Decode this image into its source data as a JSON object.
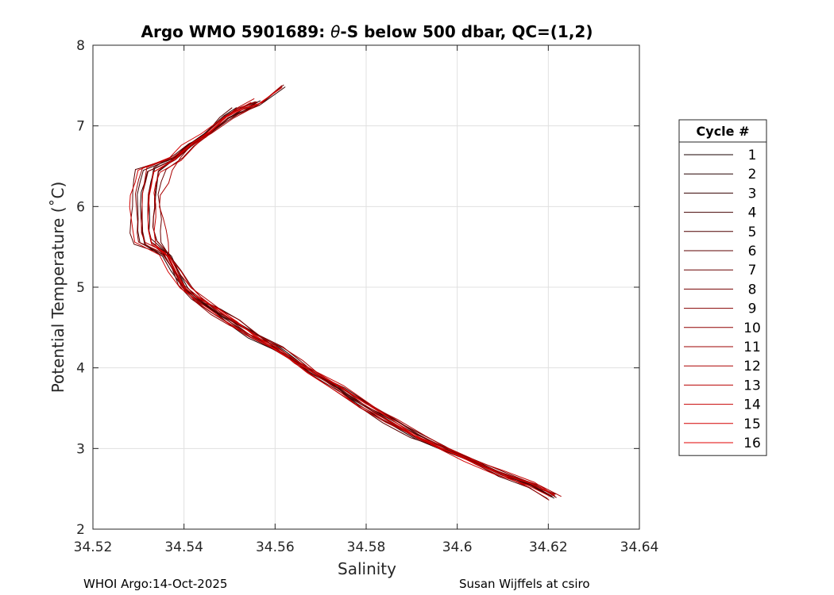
{
  "chart_data": {
    "type": "line",
    "title_prefix": "Argo WMO 5901689: ",
    "title_theta": "θ",
    "title_suffix": "-S below 500 dbar,  QC=(1,2)",
    "xlabel": "Salinity",
    "ylabel": "Potential Temperature (˚C)",
    "xlim": [
      34.52,
      34.64
    ],
    "ylim": [
      2,
      8
    ],
    "xticks": [
      34.52,
      34.54,
      34.56,
      34.58,
      34.6,
      34.62,
      34.64
    ],
    "xtick_labels": [
      "34.52",
      "34.54",
      "34.56",
      "34.58",
      "34.6",
      "34.62",
      "34.64"
    ],
    "yticks": [
      2,
      3,
      4,
      5,
      6,
      7,
      8
    ],
    "ytick_labels": [
      "2",
      "3",
      "4",
      "5",
      "6",
      "7",
      "8"
    ],
    "grid": true,
    "legend_title": "Cycle #",
    "legend_position": "outside-right",
    "color_start": "#1a0000",
    "color_end": "#e00000",
    "base_profile": [
      [
        34.561,
        7.5
      ],
      [
        34.556,
        7.3
      ],
      [
        34.552,
        7.2
      ],
      [
        34.549,
        7.1
      ],
      [
        34.545,
        6.9
      ],
      [
        34.541,
        6.75
      ],
      [
        34.538,
        6.6
      ],
      [
        34.536,
        6.45
      ],
      [
        34.535,
        6.3
      ],
      [
        34.534,
        6.15
      ],
      [
        34.534,
        6.0
      ],
      [
        34.534,
        5.85
      ],
      [
        34.534,
        5.7
      ],
      [
        34.535,
        5.55
      ],
      [
        34.536,
        5.4
      ],
      [
        34.538,
        5.2
      ],
      [
        34.54,
        5.0
      ],
      [
        34.543,
        4.85
      ],
      [
        34.547,
        4.7
      ],
      [
        34.551,
        4.55
      ],
      [
        34.555,
        4.4
      ],
      [
        34.56,
        4.25
      ],
      [
        34.564,
        4.1
      ],
      [
        34.568,
        3.95
      ],
      [
        34.574,
        3.75
      ],
      [
        34.579,
        3.55
      ],
      [
        34.585,
        3.35
      ],
      [
        34.591,
        3.15
      ],
      [
        34.597,
        3.0
      ],
      [
        34.603,
        2.85
      ],
      [
        34.609,
        2.7
      ],
      [
        34.616,
        2.55
      ],
      [
        34.621,
        2.4
      ]
    ],
    "series": [
      {
        "name": "1",
        "ds": 0.0005,
        "dt": 0.02,
        "top": 7.45,
        "bottom": 2.38,
        "lo": 34.532
      },
      {
        "name": "2",
        "ds": -0.0006,
        "dt": -0.03,
        "top": 7.3,
        "bottom": 2.35,
        "lo": 34.531
      },
      {
        "name": "3",
        "ds": 0.0008,
        "dt": 0.04,
        "top": 7.5,
        "bottom": 2.42,
        "lo": 34.533
      },
      {
        "name": "4",
        "ds": -0.0003,
        "dt": 0.0,
        "top": 7.42,
        "bottom": 2.36,
        "lo": 34.53
      },
      {
        "name": "5",
        "ds": 0.0002,
        "dt": -0.05,
        "top": 7.35,
        "bottom": 2.4,
        "lo": 34.532
      },
      {
        "name": "6",
        "ds": -0.0009,
        "dt": 0.03,
        "top": 7.28,
        "bottom": 2.33,
        "lo": 34.529
      },
      {
        "name": "7",
        "ds": 0.0011,
        "dt": 0.01,
        "top": 7.55,
        "bottom": 2.37,
        "lo": 34.534
      },
      {
        "name": "8",
        "ds": -0.0002,
        "dt": -0.02,
        "top": 7.38,
        "bottom": 2.39,
        "lo": 34.531
      },
      {
        "name": "9",
        "ds": 0.0006,
        "dt": 0.05,
        "top": 7.48,
        "bottom": 2.41,
        "lo": 34.533
      },
      {
        "name": "10",
        "ds": -0.0007,
        "dt": -0.04,
        "top": 7.32,
        "bottom": 2.34,
        "lo": 34.53
      },
      {
        "name": "11",
        "ds": 0.0003,
        "dt": 0.02,
        "top": 7.44,
        "bottom": 2.36,
        "lo": 34.532
      },
      {
        "name": "12",
        "ds": 0.0013,
        "dt": -0.01,
        "top": 7.52,
        "bottom": 2.4,
        "lo": 34.535
      },
      {
        "name": "13",
        "ds": -0.0004,
        "dt": 0.04,
        "top": 7.4,
        "bottom": 2.38,
        "lo": 34.531
      },
      {
        "name": "14",
        "ds": 0.0009,
        "dt": -0.03,
        "top": 7.46,
        "bottom": 2.35,
        "lo": 34.533
      },
      {
        "name": "15",
        "ds": -0.001,
        "dt": 0.01,
        "top": 7.34,
        "bottom": 2.37,
        "lo": 34.529
      },
      {
        "name": "16",
        "ds": 0.0004,
        "dt": 0.03,
        "top": 7.5,
        "bottom": 2.32,
        "lo": 34.532
      }
    ]
  },
  "footer": {
    "left": "WHOI Argo:14-Oct-2025",
    "right": "Susan Wijffels at csiro"
  }
}
